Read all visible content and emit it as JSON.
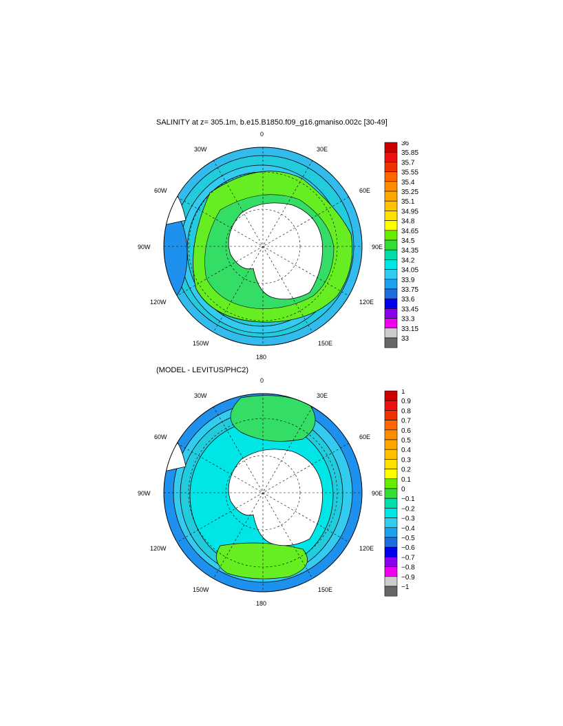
{
  "panel_top": {
    "title": "SALINITY at z= 305.1m, b.e15.B1850.f09_g16.gmaniso.002c [30-49]",
    "longitude_labels": [
      "0",
      "30E",
      "60E",
      "90E",
      "120E",
      "150E",
      "180",
      "150W",
      "120W",
      "90W",
      "60W",
      "30W"
    ],
    "colorbar_levels": [
      "36",
      "35.85",
      "35.7",
      "35.55",
      "35.4",
      "35.25",
      "35.1",
      "34.95",
      "34.8",
      "34.65",
      "34.5",
      "34.35",
      "34.2",
      "34.05",
      "33.9",
      "33.75",
      "33.6",
      "33.45",
      "33.3",
      "33.15",
      "33"
    ],
    "colorbar_colors": [
      "#cc0000",
      "#ee1111",
      "#ee3300",
      "#ff6600",
      "#ff8c00",
      "#ffa500",
      "#ffc000",
      "#ffe000",
      "#ffff00",
      "#66ee00",
      "#33dd33",
      "#00ddaa",
      "#00e5e5",
      "#33ccf0",
      "#1ea0f0",
      "#1e6ee0",
      "#0000ee",
      "#8800ee",
      "#ee00ee",
      "#cccccc",
      "#666666"
    ]
  },
  "panel_bottom": {
    "title": "(MODEL - LEVITUS/PHC2)",
    "longitude_labels": [
      "0",
      "30E",
      "60E",
      "90E",
      "120E",
      "150E",
      "180",
      "150W",
      "120W",
      "90W",
      "60W",
      "30W"
    ],
    "colorbar_levels": [
      "1",
      "0.9",
      "0.8",
      "0.7",
      "0.6",
      "0.5",
      "0.4",
      "0.3",
      "0.2",
      "0.1",
      "0",
      "−0.1",
      "−0.2",
      "−0.3",
      "−0.4",
      "−0.5",
      "−0.6",
      "−0.7",
      "−0.8",
      "−0.9",
      "−1"
    ],
    "colorbar_colors": [
      "#cc0000",
      "#ee1111",
      "#ee3300",
      "#ff6600",
      "#ff8c00",
      "#ffa500",
      "#ffc000",
      "#ffe000",
      "#ffff00",
      "#66ee00",
      "#33dd33",
      "#00ddaa",
      "#00e5e5",
      "#33ccf0",
      "#1ea0f0",
      "#1e6ee0",
      "#0000ee",
      "#8800ee",
      "#ee00ee",
      "#cccccc",
      "#666666"
    ]
  },
  "colors": {
    "ocean_blue": "#33bbee",
    "ocean_cyan": "#22ccdd",
    "ocean_deep": "#1e90ee",
    "green_band": "#66ee22",
    "green_mid": "#33dd66",
    "land": "#ffffff"
  }
}
